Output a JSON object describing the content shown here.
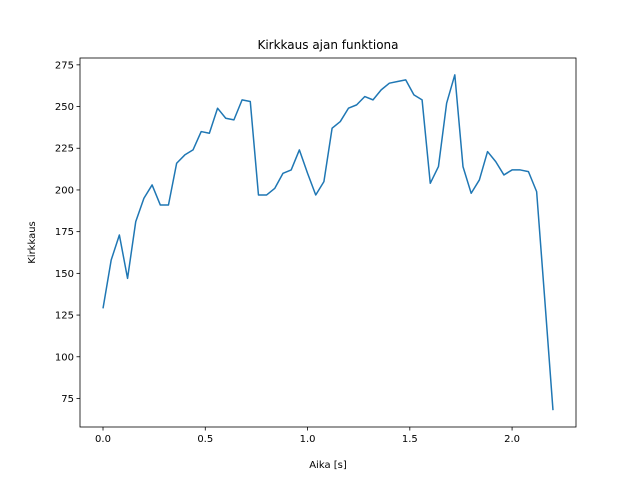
{
  "chart_data": {
    "type": "line",
    "title": "Kirkkaus ajan funktiona",
    "xlabel": "Aika [s]",
    "ylabel": "Kirkkaus",
    "xlim": [
      -0.1125,
      2.3125
    ],
    "ylim": [
      57.9,
      279.1
    ],
    "xticks": [
      0.0,
      0.5,
      1.0,
      1.5,
      2.0
    ],
    "xtick_labels": [
      "0.0",
      "0.5",
      "1.0",
      "1.5",
      "2.0"
    ],
    "yticks": [
      75,
      100,
      125,
      150,
      175,
      200,
      225,
      250,
      275
    ],
    "ytick_labels": [
      "75",
      "100",
      "125",
      "150",
      "175",
      "200",
      "225",
      "250",
      "275"
    ],
    "grid": false,
    "series": [
      {
        "name": "Kirkkaus",
        "color": "#1f77b4",
        "x": [
          0.0,
          0.04,
          0.08,
          0.12,
          0.16,
          0.2,
          0.24,
          0.28,
          0.32,
          0.36,
          0.4,
          0.44,
          0.48,
          0.52,
          0.56,
          0.6,
          0.64,
          0.68,
          0.72,
          0.76,
          0.8,
          0.84,
          0.88,
          0.92,
          0.96,
          1.0,
          1.04,
          1.08,
          1.12,
          1.16,
          1.2,
          1.24,
          1.28,
          1.32,
          1.36,
          1.4,
          1.44,
          1.48,
          1.52,
          1.56,
          1.6,
          1.64,
          1.68,
          1.72,
          1.76,
          1.8,
          1.84,
          1.88,
          1.92,
          1.96,
          2.0,
          2.04,
          2.08,
          2.12,
          2.16,
          2.2
        ],
        "y": [
          129,
          158,
          173,
          147,
          181,
          195,
          203,
          191,
          191,
          216,
          221,
          224,
          235,
          234,
          249,
          243,
          242,
          254,
          253,
          197,
          197,
          201,
          210,
          212,
          224,
          210,
          197,
          205,
          237,
          241,
          249,
          251,
          256,
          254,
          260,
          264,
          265,
          266,
          257,
          254,
          204,
          214,
          252,
          269,
          214,
          198,
          206,
          223,
          217,
          209,
          212,
          212,
          211,
          199,
          134,
          68
        ]
      }
    ]
  }
}
